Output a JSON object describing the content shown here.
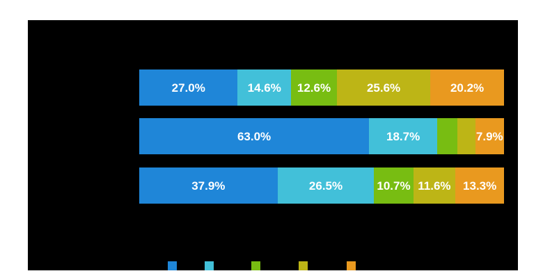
{
  "canvas": {
    "background_color": "#ffffff",
    "plot_background_color": "#000000",
    "label_text_color": "#ffffff"
  },
  "chart_data": {
    "type": "bar",
    "orientation": "horizontal",
    "stacked": true,
    "unit": "%",
    "title": "",
    "xlabel": "",
    "ylabel": "",
    "axis_tick_labels_visible": false,
    "category_labels_visible": false,
    "grid": false,
    "xlim": [
      0,
      100
    ],
    "palette": [
      "#1f86d8",
      "#42c0d9",
      "#78bd12",
      "#bdb516",
      "#e9991f"
    ],
    "rows": [
      {
        "segments": [
          {
            "value": 27.0,
            "label": "27.0%"
          },
          {
            "value": 14.6,
            "label": "14.6%"
          },
          {
            "value": 12.6,
            "label": "12.6%"
          },
          {
            "value": 25.6,
            "label": "25.6%"
          },
          {
            "value": 20.2,
            "label": "20.2%"
          }
        ]
      },
      {
        "segments": [
          {
            "value": 63.0,
            "label": "63.0%"
          },
          {
            "value": 18.7,
            "label": "18.7%"
          },
          {
            "value": 5.5,
            "label": ""
          },
          {
            "value": 4.9,
            "label": ""
          },
          {
            "value": 7.9,
            "label": "7.9%"
          }
        ]
      },
      {
        "segments": [
          {
            "value": 37.9,
            "label": "37.9%"
          },
          {
            "value": 26.5,
            "label": "26.5%"
          },
          {
            "value": 10.7,
            "label": "10.7%"
          },
          {
            "value": 11.6,
            "label": "11.6%"
          },
          {
            "value": 13.3,
            "label": "13.3%"
          }
        ]
      }
    ],
    "legend": {
      "position": "bottom",
      "swatch_colors": [
        "#1f86d8",
        "#42c0d9",
        "#78bd12",
        "#bdb516",
        "#e9991f"
      ],
      "labels_visible": false
    }
  }
}
